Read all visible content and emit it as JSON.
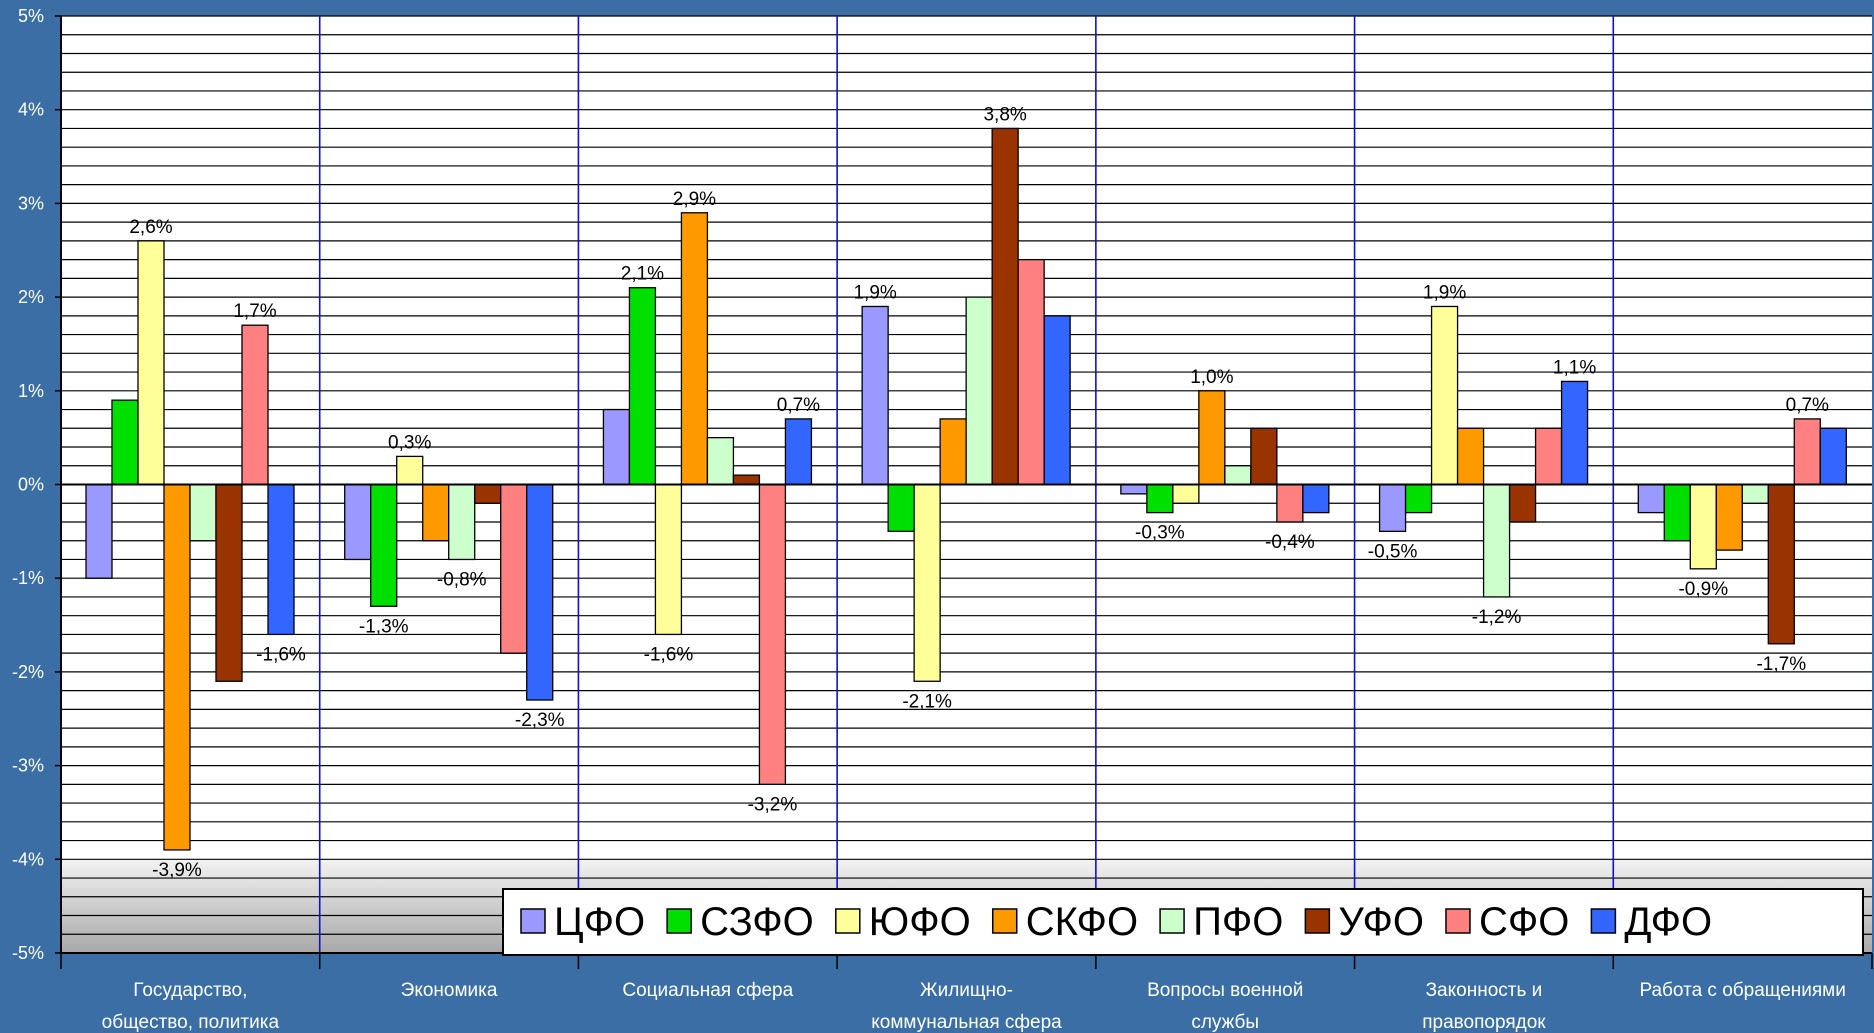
{
  "chart_data": {
    "type": "bar",
    "categories": [
      [
        "Государство,",
        "общество, политика"
      ],
      [
        "Экономика"
      ],
      [
        "Социальная сфера"
      ],
      [
        "Жилищно-",
        "коммунальная сфера"
      ],
      [
        "Вопросы военной",
        "службы"
      ],
      [
        "Законность и",
        "правопорядок"
      ],
      [
        "Работа с обращениями"
      ]
    ],
    "series": [
      {
        "name": "ЦФО",
        "color": "#9999ff",
        "values": [
          -1.0,
          -0.8,
          0.8,
          1.9,
          -0.1,
          -0.5,
          -0.3
        ]
      },
      {
        "name": "СЗФО",
        "color": "#00e000",
        "values": [
          0.9,
          -1.3,
          2.1,
          -0.5,
          -0.3,
          -0.3,
          -0.6
        ]
      },
      {
        "name": "ЮФО",
        "color": "#ffff99",
        "values": [
          2.6,
          0.3,
          -1.6,
          -2.1,
          -0.2,
          1.9,
          -0.9
        ]
      },
      {
        "name": "СКФО",
        "color": "#ff9900",
        "values": [
          -3.9,
          -0.6,
          2.9,
          0.7,
          1.0,
          0.6,
          -0.7
        ]
      },
      {
        "name": "ПФО",
        "color": "#ccffcc",
        "values": [
          -0.6,
          -0.8,
          0.5,
          2.0,
          0.2,
          -1.2,
          -0.2
        ]
      },
      {
        "name": "УФО",
        "color": "#993300",
        "values": [
          -2.1,
          -0.2,
          0.1,
          3.8,
          0.6,
          -0.4,
          -1.7
        ]
      },
      {
        "name": "СФО",
        "color": "#ff8080",
        "values": [
          1.7,
          -1.8,
          -3.2,
          2.4,
          -0.4,
          0.6,
          0.7
        ]
      },
      {
        "name": "ДФО",
        "color": "#3366ff",
        "values": [
          -1.6,
          -2.3,
          0.7,
          1.8,
          -0.3,
          1.1,
          0.6
        ]
      }
    ],
    "data_labels": [
      {
        "category": 0,
        "series": 0,
        "text": "-1,0%",
        "shown": false
      },
      {
        "category": 0,
        "series": 2,
        "text": "2,6%"
      },
      {
        "category": 0,
        "series": 3,
        "text": "-3,9%"
      },
      {
        "category": 0,
        "series": 6,
        "text": "1,7%"
      },
      {
        "category": 0,
        "series": 7,
        "text": "-1,6%"
      },
      {
        "category": 1,
        "series": 1,
        "text": "-1,3%"
      },
      {
        "category": 1,
        "series": 2,
        "text": "0,3%"
      },
      {
        "category": 1,
        "series": 4,
        "text": "-0,8%"
      },
      {
        "category": 1,
        "series": 7,
        "text": "-2,3%"
      },
      {
        "category": 2,
        "series": 1,
        "text": "2,1%"
      },
      {
        "category": 2,
        "series": 2,
        "text": "-1,6%"
      },
      {
        "category": 2,
        "series": 3,
        "text": "2,9%"
      },
      {
        "category": 2,
        "series": 6,
        "text": "-3,2%"
      },
      {
        "category": 2,
        "series": 7,
        "text": "0,7%"
      },
      {
        "category": 3,
        "series": 0,
        "text": "1,9%"
      },
      {
        "category": 3,
        "series": 2,
        "text": "-2,1%"
      },
      {
        "category": 3,
        "series": 5,
        "text": "3,8%"
      },
      {
        "category": 4,
        "series": 1,
        "text": "-0,3%"
      },
      {
        "category": 4,
        "series": 3,
        "text": "1,0%"
      },
      {
        "category": 4,
        "series": 6,
        "text": "-0,4%"
      },
      {
        "category": 5,
        "series": 0,
        "text": "-0,5%"
      },
      {
        "category": 5,
        "series": 2,
        "text": "1,9%"
      },
      {
        "category": 5,
        "series": 4,
        "text": "-1,2%"
      },
      {
        "category": 5,
        "series": 7,
        "text": "1,1%"
      },
      {
        "category": 6,
        "series": 2,
        "text": "-0,9%"
      },
      {
        "category": 6,
        "series": 5,
        "text": "-1,7%"
      },
      {
        "category": 6,
        "series": 6,
        "text": "0,7%"
      }
    ],
    "ylim": [
      -5,
      5
    ],
    "y_ticks": [
      "-5%",
      "-4%",
      "-3%",
      "-2%",
      "-1%",
      "0%",
      "1%",
      "2%",
      "3%",
      "4%",
      "5%"
    ],
    "grid": true,
    "legend": "bottom-right",
    "title": "",
    "xlabel": "",
    "ylabel": ""
  }
}
